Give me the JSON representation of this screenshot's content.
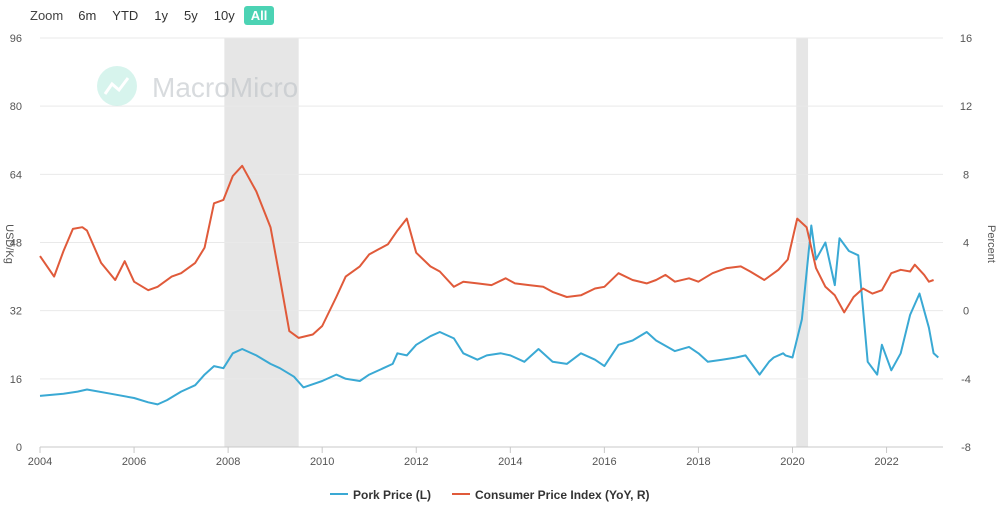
{
  "zoom": {
    "label": "Zoom",
    "options": [
      "6m",
      "YTD",
      "1y",
      "5y",
      "10y",
      "All"
    ],
    "active": "All"
  },
  "watermark": "MacroMicro",
  "colors": {
    "pork": "#3aa9d4",
    "cpi": "#e05a3a",
    "recession": "#e6e6e6",
    "grid": "#e9e9e9",
    "accent": "#4cd3b4"
  },
  "chart_data": {
    "type": "line",
    "xlabel": "",
    "ylabel_left": "USD/Kg",
    "ylabel_right": "Percent",
    "xlim": [
      2004,
      2023.2
    ],
    "x_ticks": [
      2004,
      2006,
      2008,
      2010,
      2012,
      2014,
      2016,
      2018,
      2020,
      2022
    ],
    "ylim_left": [
      0,
      96
    ],
    "yticks_left": [
      0,
      16,
      32,
      48,
      64,
      80,
      96
    ],
    "ylim_right": [
      -8,
      16
    ],
    "yticks_right": [
      -8,
      -4,
      0,
      4,
      8,
      12,
      16
    ],
    "recessions": [
      [
        2007.92,
        2009.5
      ],
      [
        2020.08,
        2020.33
      ]
    ],
    "legend": [
      "Pork Price (L)",
      "Consumer Price Index (YoY, R)"
    ],
    "series": [
      {
        "name": "Pork Price (L)",
        "axis": "left",
        "x": [
          2004.0,
          2004.5,
          2004.8,
          2005.0,
          2005.5,
          2006.0,
          2006.3,
          2006.5,
          2006.7,
          2007.0,
          2007.3,
          2007.5,
          2007.7,
          2007.9,
          2008.1,
          2008.3,
          2008.6,
          2008.9,
          2009.1,
          2009.4,
          2009.6,
          2010.0,
          2010.3,
          2010.5,
          2010.8,
          2011.0,
          2011.3,
          2011.5,
          2011.6,
          2011.8,
          2012.0,
          2012.3,
          2012.5,
          2012.8,
          2013.0,
          2013.3,
          2013.5,
          2013.8,
          2014.0,
          2014.3,
          2014.6,
          2014.9,
          2015.2,
          2015.5,
          2015.8,
          2016.0,
          2016.3,
          2016.6,
          2016.9,
          2017.1,
          2017.5,
          2017.8,
          2018.0,
          2018.2,
          2018.5,
          2018.8,
          2019.0,
          2019.3,
          2019.5,
          2019.6,
          2019.8,
          2019.85,
          2020.0,
          2020.2,
          2020.4,
          2020.5,
          2020.7,
          2020.9,
          2021.0,
          2021.2,
          2021.4,
          2021.6,
          2021.8,
          2021.9,
          2022.1,
          2022.3,
          2022.5,
          2022.7,
          2022.8,
          2022.9,
          2023.0,
          2023.1
        ],
        "values": [
          12,
          12.5,
          13,
          13.5,
          12.5,
          11.5,
          10.5,
          10,
          11,
          13,
          14.5,
          17,
          19,
          18.5,
          22,
          23,
          21.5,
          19.5,
          18.5,
          16.5,
          14,
          15.5,
          17,
          16,
          15.5,
          17,
          18.5,
          19.5,
          22,
          21.5,
          24,
          26,
          27,
          25.5,
          22,
          20.5,
          21.5,
          22,
          21.5,
          20,
          23,
          20,
          19.5,
          22,
          20.5,
          19,
          24,
          25,
          27,
          25,
          22.5,
          23.5,
          22,
          20,
          20.5,
          21,
          21.5,
          17,
          20,
          21,
          22,
          21.5,
          21,
          30,
          52,
          44,
          48,
          38,
          49,
          46,
          45,
          20,
          17,
          24,
          18,
          22,
          31,
          36,
          32,
          28,
          22,
          21
        ]
      },
      {
        "name": "Consumer Price Index (YoY, R)",
        "axis": "right",
        "x": [
          2004.0,
          2004.3,
          2004.5,
          2004.7,
          2004.9,
          2005.0,
          2005.3,
          2005.6,
          2005.8,
          2006.0,
          2006.3,
          2006.5,
          2006.8,
          2007.0,
          2007.3,
          2007.5,
          2007.7,
          2007.9,
          2008.1,
          2008.3,
          2008.6,
          2008.9,
          2009.1,
          2009.3,
          2009.5,
          2009.8,
          2010.0,
          2010.3,
          2010.5,
          2010.8,
          2011.0,
          2011.2,
          2011.4,
          2011.6,
          2011.8,
          2012.0,
          2012.3,
          2012.5,
          2012.8,
          2013.0,
          2013.3,
          2013.6,
          2013.9,
          2014.1,
          2014.4,
          2014.7,
          2014.9,
          2015.2,
          2015.5,
          2015.8,
          2016.0,
          2016.3,
          2016.6,
          2016.9,
          2017.1,
          2017.3,
          2017.5,
          2017.8,
          2018.0,
          2018.3,
          2018.6,
          2018.9,
          2019.1,
          2019.4,
          2019.7,
          2019.9,
          2020.1,
          2020.3,
          2020.5,
          2020.7,
          2020.9,
          2021.1,
          2021.3,
          2021.5,
          2021.7,
          2021.9,
          2022.1,
          2022.3,
          2022.5,
          2022.6,
          2022.8,
          2022.9,
          2023.0
        ],
        "values": [
          3.2,
          2.0,
          3.5,
          4.8,
          4.9,
          4.7,
          2.8,
          1.8,
          2.9,
          1.7,
          1.2,
          1.4,
          2.0,
          2.2,
          2.8,
          3.7,
          6.3,
          6.5,
          7.9,
          8.5,
          7.0,
          4.9,
          1.9,
          -1.2,
          -1.6,
          -1.4,
          -0.9,
          0.8,
          2.0,
          2.6,
          3.3,
          3.6,
          3.9,
          4.7,
          5.4,
          3.4,
          2.6,
          2.3,
          1.4,
          1.7,
          1.6,
          1.5,
          1.9,
          1.6,
          1.5,
          1.4,
          1.1,
          0.8,
          0.9,
          1.3,
          1.4,
          2.2,
          1.8,
          1.6,
          1.8,
          2.1,
          1.7,
          1.9,
          1.7,
          2.2,
          2.5,
          2.6,
          2.3,
          1.8,
          2.4,
          3.0,
          5.4,
          4.9,
          2.5,
          1.4,
          0.9,
          -0.1,
          0.8,
          1.3,
          1.0,
          1.2,
          2.2,
          2.4,
          2.3,
          2.7,
          2.1,
          1.7,
          1.8
        ]
      }
    ]
  }
}
